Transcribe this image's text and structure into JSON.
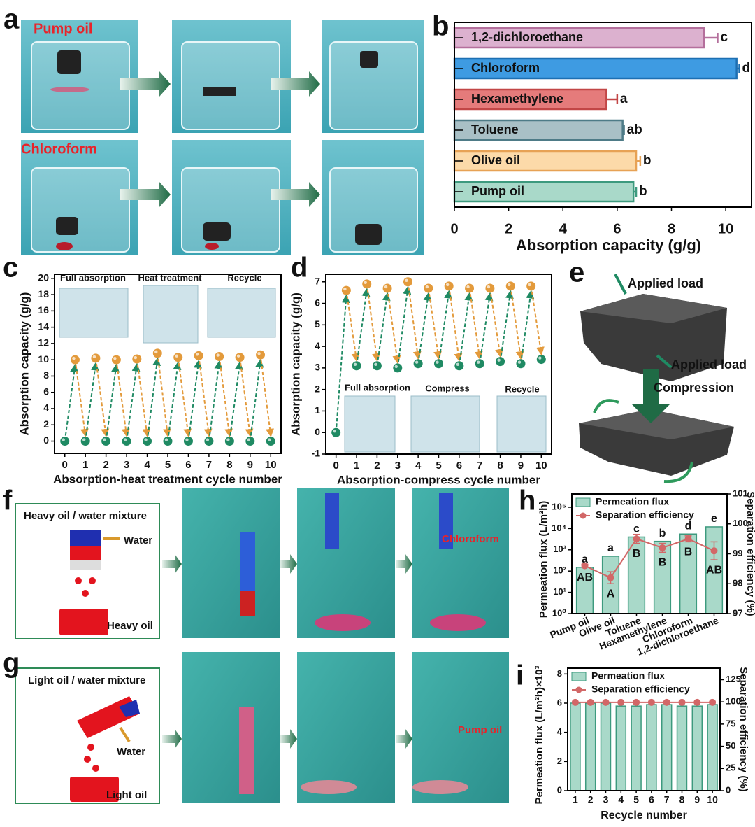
{
  "panels": {
    "a": {
      "label": "a",
      "texts": [
        "Pump oil",
        "Chloroform"
      ]
    },
    "e": {
      "label": "e",
      "texts": [
        "Applied load",
        "Applied load",
        "Compression"
      ]
    },
    "f": {
      "label": "f",
      "title": "Heavy oil / water mixture",
      "texts": [
        "Water",
        "Heavy oil",
        "Chloroform"
      ]
    },
    "g": {
      "label": "g",
      "title": "Light oil / water mixture",
      "texts": [
        "Water",
        "Light oil",
        "Pump oil"
      ]
    }
  },
  "chart_data": [
    {
      "type": "barh",
      "label": "b",
      "xlabel": "Absorption capacity (g/g)",
      "categories": [
        "1,2-dichloroethane",
        "Chloroform",
        "Hexamethylene",
        "Toluene",
        "Olive oil",
        "Pump oil"
      ],
      "values": [
        9.2,
        10.4,
        5.6,
        6.2,
        6.7,
        6.6
      ],
      "errors": [
        0.5,
        0.1,
        0.4,
        0.05,
        0.15,
        0.1
      ],
      "value_labels": [
        "c",
        "d",
        "a",
        "ab",
        "b",
        "b"
      ],
      "colors": [
        "#dcb1cf",
        "#3e9be2",
        "#e57b7b",
        "#a9c0c6",
        "#fcdaa9",
        "#a9d9c9"
      ],
      "edgecolors": [
        "#b46f9c",
        "#1d6fb2",
        "#c24646",
        "#4e7b87",
        "#e7a255",
        "#3d9a7e"
      ],
      "xlim": [
        0,
        10.95
      ],
      "xticks": [
        0,
        2,
        4,
        6,
        8,
        10
      ]
    },
    {
      "type": "scatter",
      "label": "c",
      "xlabel": "Absorption-heat treatment cycle number",
      "ylabel": "Absorption capacity (g/g)",
      "insets": [
        "Full absorption",
        "Heat treatment",
        "Recycle"
      ],
      "series": [
        {
          "color": "#e39a3b",
          "x": [
            0.5,
            1.5,
            2.5,
            3.5,
            4.5,
            5.5,
            6.5,
            7.5,
            8.5,
            9.5
          ],
          "values": [
            10,
            10.2,
            10,
            10.1,
            10.8,
            10.3,
            10.5,
            10.4,
            10.3,
            10.6
          ]
        },
        {
          "color": "#1f8a63",
          "x": [
            0,
            1,
            2,
            3,
            4,
            5,
            6,
            7,
            8,
            9,
            10
          ],
          "values": [
            0,
            0,
            0,
            0,
            0,
            0,
            0,
            0,
            0,
            0,
            0
          ]
        }
      ],
      "xlim": [
        -0.5,
        10.5
      ],
      "xticks": [
        0,
        1,
        2,
        3,
        4,
        5,
        6,
        7,
        8,
        9,
        10
      ],
      "ylim": [
        -1.5,
        20.5
      ],
      "yticks": [
        0,
        2,
        4,
        6,
        8,
        10,
        12,
        14,
        16,
        18,
        20
      ]
    },
    {
      "type": "scatter",
      "label": "d",
      "xlabel": "Absorption-compress cycle number",
      "ylabel": "Absorption capacity (g/g)",
      "insets": [
        "Full absorption",
        "Compress",
        "Recycle"
      ],
      "series": [
        {
          "color": "#e39a3b",
          "x": [
            0.5,
            1.5,
            2.5,
            3.5,
            4.5,
            5.5,
            6.5,
            7.5,
            8.5,
            9.5
          ],
          "values": [
            6.6,
            6.9,
            6.7,
            7.0,
            6.7,
            6.8,
            6.7,
            6.7,
            6.8,
            6.8
          ]
        },
        {
          "color": "#1f8a63",
          "x": [
            0,
            1,
            2,
            3,
            4,
            5,
            6,
            7,
            8,
            9,
            10
          ],
          "values": [
            0,
            3.1,
            3.1,
            3.0,
            3.2,
            3.2,
            3.1,
            3.2,
            3.3,
            3.2,
            3.4
          ]
        }
      ],
      "xlim": [
        -0.5,
        10.5
      ],
      "xticks": [
        0,
        1,
        2,
        3,
        4,
        5,
        6,
        7,
        8,
        9,
        10
      ],
      "ylim": [
        -1,
        7.35
      ],
      "yticks": [
        -1,
        0,
        1,
        2,
        3,
        4,
        5,
        6,
        7
      ]
    },
    {
      "type": "bar",
      "label": "h",
      "ylabel": "Permeation flux (L/m²h)",
      "y2label": "Separation efficiency (%)",
      "legend": "upper left",
      "log_scale": true,
      "categories": [
        "Pump oil",
        "Olive oil",
        "Toluene",
        "Hexamethylene",
        "Chloroform",
        "1,2-dichloroethane"
      ],
      "series": [
        {
          "name": "Permeation flux",
          "color": "#a9d9c9",
          "edgecolor": "#3d9a7e",
          "values": [
            150,
            500,
            4000,
            2500,
            5500,
            12000
          ],
          "value_labels": [
            "a",
            "a",
            "c",
            "b",
            "d",
            "e"
          ]
        },
        {
          "name": "Separation efficiency",
          "color": "#d26767",
          "axis": "y2",
          "values": [
            98.6,
            98.2,
            99.5,
            99.2,
            99.5,
            99.1
          ],
          "errors": [
            0.05,
            0.2,
            0.15,
            0.15,
            0.1,
            0.3
          ],
          "value_labels": [
            "AB",
            "A",
            "B",
            "B",
            "B",
            "AB"
          ]
        }
      ],
      "ylim": [
        1,
        420000
      ],
      "yticks": [
        {
          "value": 1,
          "label": "10⁰"
        },
        {
          "value": 10,
          "label": "10¹"
        },
        {
          "value": 100,
          "label": "10²"
        },
        {
          "value": 1000,
          "label": "10³"
        },
        {
          "value": 10000,
          "label": "10⁴"
        },
        {
          "value": 100000,
          "label": "10⁵"
        }
      ],
      "y2lim": [
        97,
        101
      ],
      "y2ticks": [
        97,
        98,
        99,
        100,
        101
      ]
    },
    {
      "type": "bar",
      "label": "i",
      "xlabel": "Recycle number",
      "ylabel": "Permeation flux (L/m²h)×10³",
      "y2label": "Separation efficiency (%)",
      "legend": "upper left",
      "categories": [
        "1",
        "2",
        "3",
        "4",
        "5",
        "6",
        "7",
        "8",
        "9",
        "10"
      ],
      "series": [
        {
          "name": "Permeation flux",
          "color": "#a9d9c9",
          "edgecolor": "#3d9a7e",
          "values": [
            6.0,
            6.0,
            6.0,
            5.8,
            5.8,
            5.9,
            5.9,
            5.8,
            5.8,
            5.9
          ]
        },
        {
          "name": "Separation efficiency",
          "color": "#d26767",
          "axis": "y2",
          "values": [
            99.5,
            99.5,
            99.5,
            99.5,
            99.5,
            99.5,
            99.5,
            99.5,
            99.5,
            99.5
          ]
        }
      ],
      "ylim": [
        0,
        8.4
      ],
      "yticks": [
        0,
        2,
        4,
        6,
        8
      ],
      "y2lim": [
        0,
        138
      ],
      "y2ticks": [
        0,
        25,
        50,
        75,
        100,
        125
      ]
    }
  ]
}
